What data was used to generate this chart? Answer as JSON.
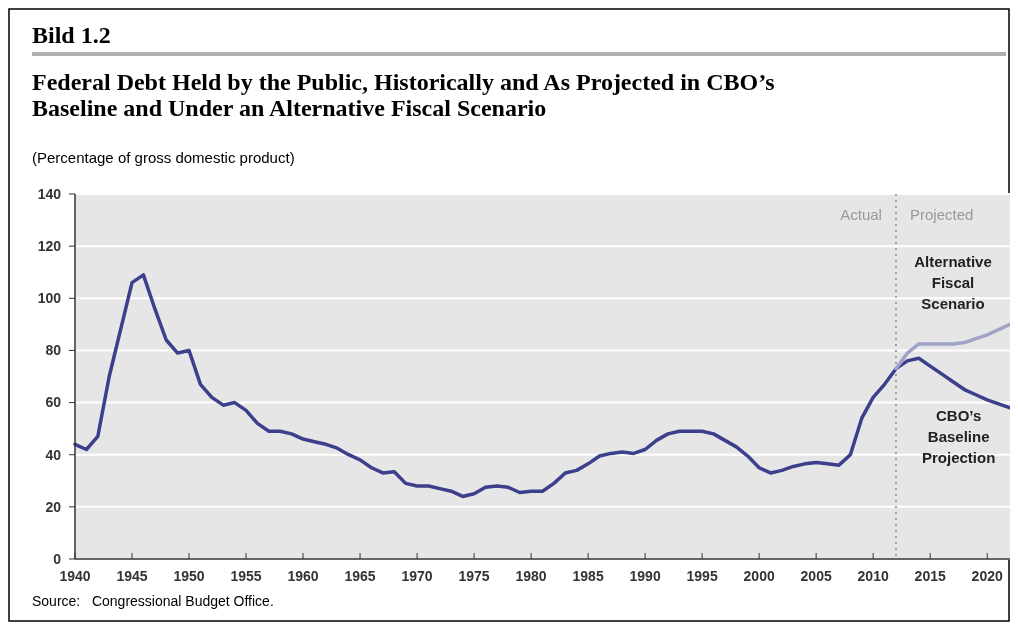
{
  "chart_data": {
    "type": "line",
    "title": "Federal Debt Held by the Public, Historically and As Projected in CBO’s\nBaseline and Under an Alternative Fiscal Scenario",
    "subtitle": "(Percentage of gross domestic product)",
    "annotations": [
      "Bild 1.2",
      "Actual",
      "Projected",
      "Source:   Congressional Budget Office."
    ],
    "xlim": [
      1940,
      2022
    ],
    "xticks": [
      1940,
      1945,
      1950,
      1955,
      1960,
      1965,
      1970,
      1975,
      1980,
      1985,
      1990,
      1995,
      2000,
      2005,
      2010,
      2015,
      2020
    ],
    "ylim": [
      0,
      140
    ],
    "yticks": [
      0,
      20,
      40,
      60,
      80,
      100,
      120,
      140
    ],
    "grid": "y",
    "line_style": "solid",
    "ref_lines": [
      {
        "axis": "x",
        "value": 2012,
        "color": "#a0a0a0",
        "line_style": "dotted"
      }
    ],
    "series": [
      {
        "name": "CBO’s Baseline Projection",
        "color": "#3b3f8c",
        "x": [
          1940,
          1941,
          1942,
          1943,
          1944,
          1945,
          1946,
          1947,
          1948,
          1949,
          1950,
          1951,
          1952,
          1953,
          1954,
          1955,
          1956,
          1957,
          1958,
          1959,
          1960,
          1961,
          1962,
          1963,
          1964,
          1965,
          1966,
          1967,
          1968,
          1969,
          1970,
          1971,
          1972,
          1973,
          1974,
          1975,
          1976,
          1977,
          1978,
          1979,
          1980,
          1981,
          1982,
          1983,
          1984,
          1985,
          1986,
          1987,
          1988,
          1989,
          1990,
          1991,
          1992,
          1993,
          1994,
          1995,
          1996,
          1997,
          1998,
          1999,
          2000,
          2001,
          2002,
          2003,
          2004,
          2005,
          2006,
          2007,
          2008,
          2009,
          2010,
          2011,
          2012,
          2013,
          2014,
          2015,
          2016,
          2017,
          2018,
          2019,
          2020,
          2021,
          2022
        ],
        "values": [
          44,
          42,
          47,
          70,
          88,
          106,
          109,
          96,
          84,
          79,
          80,
          67,
          62,
          59,
          60,
          57,
          52,
          49,
          49,
          48,
          46,
          45,
          44,
          42.5,
          40,
          38,
          35,
          33,
          33.5,
          29,
          28,
          28,
          27,
          26,
          24,
          25,
          27.5,
          28,
          27.5,
          25.5,
          26,
          26,
          29,
          33,
          34,
          36.5,
          39.5,
          40.5,
          41,
          40.5,
          42,
          45.5,
          48,
          49,
          49,
          49,
          48,
          45.5,
          43,
          39.5,
          35,
          33,
          34,
          35.5,
          36.5,
          37,
          36.5,
          36,
          40,
          54,
          62,
          67,
          73,
          76,
          77,
          74,
          71,
          68,
          65,
          63,
          61,
          59.5,
          58
        ]
      },
      {
        "name": "Alternative Fiscal Scenario",
        "color": "#9fa3c8",
        "x": [
          2012,
          2013,
          2014,
          2015,
          2016,
          2017,
          2018,
          2019,
          2020,
          2021,
          2022
        ],
        "values": [
          73,
          79,
          82.5,
          82.5,
          82.5,
          82.5,
          83,
          84.5,
          86,
          88,
          90
        ]
      }
    ]
  }
}
